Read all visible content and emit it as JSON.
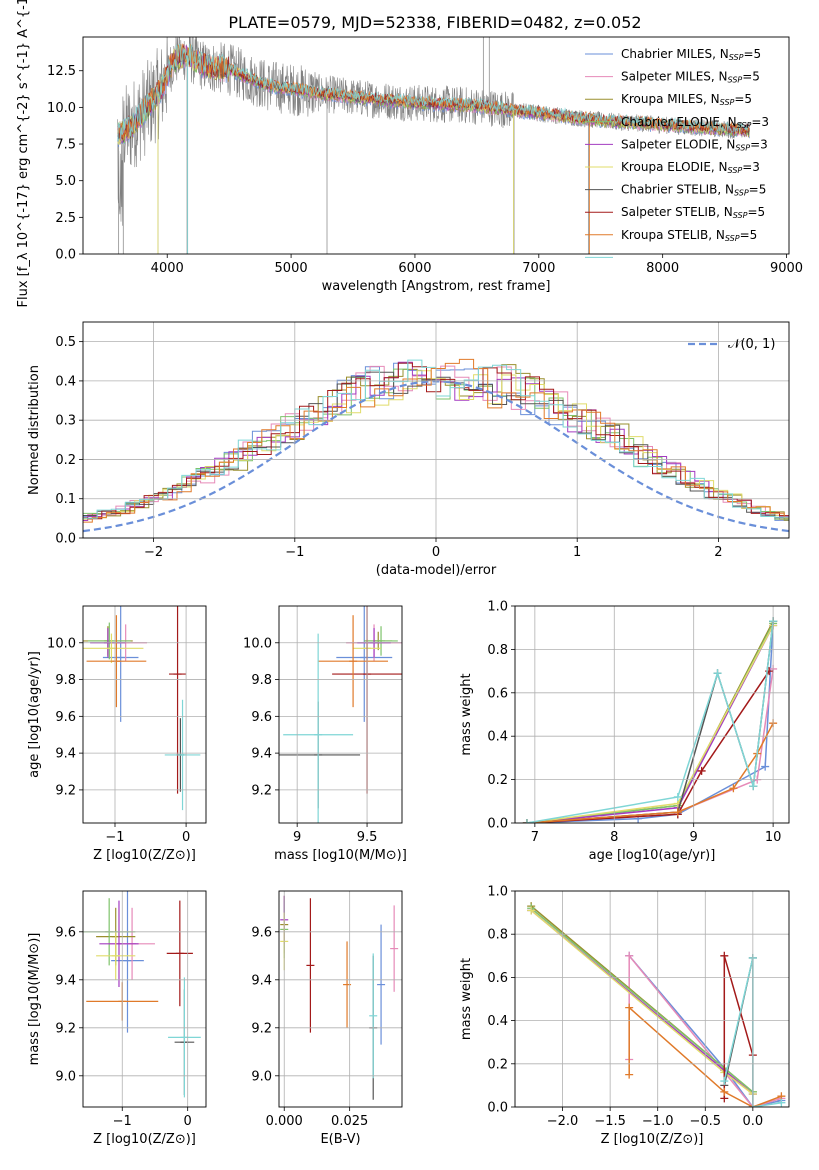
{
  "figure_title": "PLATE=0579, MJD=52338, FIBERID=0482, z=0.052",
  "colors": {
    "c0": "#6a8fd9",
    "c1": "#e68ab8",
    "c2": "#9a8f2e",
    "c3": "#7ec36b",
    "c4": "#a33bc1",
    "c5": "#e0dc6a",
    "c6": "#555555",
    "c7": "#a31a1a",
    "c8": "#e07a2a",
    "c9": "#7fd6d6",
    "data": "#808080"
  },
  "chart_data": [
    {
      "id": "spectrum",
      "type": "line",
      "xlabel": "wavelength [Angstrom, rest frame]",
      "ylabel": "Flux [f_λ 10^{-17} erg cm^{-2} s^{-1} A^{-1}]",
      "xlim": [
        3320,
        9020
      ],
      "ylim": [
        0,
        14.8
      ],
      "xticks": [
        4000,
        5000,
        6000,
        7000,
        8000,
        9000
      ],
      "yticks": [
        0.0,
        2.5,
        5.0,
        7.5,
        10.0,
        12.5
      ],
      "grid": false,
      "legend_position": "top-right",
      "legend": [
        {
          "base": "Chabrier MILES, N",
          "sub": "SSP",
          "tail": "=5",
          "color": "c0"
        },
        {
          "base": "Salpeter MILES, N",
          "sub": "SSP",
          "tail": "=5",
          "color": "c1"
        },
        {
          "base": "Kroupa MILES, N",
          "sub": "SSP",
          "tail": "=5",
          "color": "c2"
        },
        {
          "base": "Chabrier ELODIE, N",
          "sub": "SSP",
          "tail": "=3",
          "color": "c3"
        },
        {
          "base": "Salpeter ELODIE, N",
          "sub": "SSP",
          "tail": "=3",
          "color": "c4"
        },
        {
          "base": "Kroupa ELODIE, N",
          "sub": "SSP",
          "tail": "=3",
          "color": "c5"
        },
        {
          "base": "Chabrier STELIB, N",
          "sub": "SSP",
          "tail": "=5",
          "color": "c6"
        },
        {
          "base": "Salpeter STELIB, N",
          "sub": "SSP",
          "tail": "=5",
          "color": "c7"
        },
        {
          "base": "Kroupa STELIB, N",
          "sub": "SSP",
          "tail": "=5",
          "color": "c8"
        }
      ],
      "legend_extra_color": "c9",
      "model_trend": [
        [
          3600,
          8.2
        ],
        [
          3700,
          8.6
        ],
        [
          3800,
          9.6
        ],
        [
          3950,
          11.2
        ],
        [
          4050,
          13.2
        ],
        [
          4150,
          13.6
        ],
        [
          4300,
          12.8
        ],
        [
          4500,
          12.6
        ],
        [
          4800,
          11.5
        ],
        [
          5200,
          11.0
        ],
        [
          5600,
          10.6
        ],
        [
          6000,
          10.3
        ],
        [
          6500,
          10.1
        ],
        [
          7000,
          9.6
        ],
        [
          7500,
          9.1
        ],
        [
          8000,
          8.8
        ],
        [
          8500,
          8.5
        ],
        [
          8700,
          8.4
        ]
      ]
    },
    {
      "id": "residuals",
      "type": "step",
      "xlabel": "(data-model)/error",
      "ylabel": "Normed distribution",
      "xlim": [
        -2.5,
        2.5
      ],
      "ylim": [
        0,
        0.55
      ],
      "xticks": [
        -2,
        -1,
        0,
        1,
        2
      ],
      "yticks": [
        0.0,
        0.1,
        0.2,
        0.3,
        0.4,
        0.5
      ],
      "grid": true,
      "legend_position": "top-right",
      "legend": [
        {
          "label": "𝒩(0, 1)",
          "color": "c0",
          "style": "dashed"
        }
      ],
      "bin_width": 0.1,
      "hist_base": [
        0.02,
        0.022,
        0.025,
        0.03,
        0.035,
        0.04,
        0.047,
        0.055,
        0.063,
        0.072,
        0.085,
        0.098,
        0.112,
        0.128,
        0.145,
        0.162,
        0.182,
        0.2,
        0.22,
        0.245,
        0.26,
        0.28,
        0.3,
        0.32,
        0.345,
        0.36,
        0.375,
        0.39,
        0.4,
        0.41,
        0.4,
        0.395,
        0.39,
        0.4,
        0.395,
        0.385,
        0.39,
        0.38,
        0.365,
        0.35,
        0.335,
        0.31,
        0.29,
        0.27,
        0.255,
        0.23,
        0.21,
        0.19,
        0.17,
        0.15,
        0.135,
        0.115,
        0.1,
        0.085,
        0.072,
        0.062,
        0.052,
        0.044,
        0.037,
        0.032,
        0.028,
        0.025,
        0.022,
        0.02,
        0.018
      ]
    },
    {
      "id": "age-vs-Z",
      "type": "errorbar",
      "xlabel": "Z [log10(Z/Z⊙)]",
      "ylabel": "age  [log10(age/yr)]",
      "xlim": [
        -1.45,
        0.28
      ],
      "ylim": [
        9.02,
        10.2
      ],
      "xticks": [
        -1,
        0
      ],
      "yticks": [
        9.2,
        9.4,
        9.6,
        9.8,
        10.0
      ],
      "grid": true,
      "points": [
        {
          "c": "c0",
          "x": -0.92,
          "xe": 0.25,
          "y": 9.92,
          "ye": 0.35
        },
        {
          "c": "c1",
          "x": -0.85,
          "xe": 0.3,
          "y": 10.0,
          "ye": 0.1
        },
        {
          "c": "c2",
          "x": -1.1,
          "xe": 0.35,
          "y": 10.01,
          "ye": 0.08
        },
        {
          "c": "c3",
          "x": -1.08,
          "xe": 0.3,
          "y": 10.01,
          "ye": 0.1
        },
        {
          "c": "c4",
          "x": -1.1,
          "xe": 0.25,
          "y": 10.0,
          "ye": 0.08
        },
        {
          "c": "c5",
          "x": -1.05,
          "xe": 0.45,
          "y": 9.97,
          "ye": 0.08
        },
        {
          "c": "c6",
          "x": -0.08,
          "xe": 0.05,
          "y": 9.39,
          "ye": 0.2
        },
        {
          "c": "c7",
          "x": -0.12,
          "xe": 0.12,
          "y": 9.83,
          "ye": 0.65
        },
        {
          "c": "c8",
          "x": -0.98,
          "xe": 0.42,
          "y": 9.9,
          "ye": 0.25
        },
        {
          "c": "c9",
          "x": -0.05,
          "xe": 0.25,
          "y": 9.39,
          "ye": 0.3
        }
      ]
    },
    {
      "id": "age-vs-mass",
      "type": "errorbar",
      "xlabel": "mass [log10(M/M⊙)]",
      "ylabel": "",
      "xlim": [
        8.87,
        9.75
      ],
      "ylim": [
        9.02,
        10.2
      ],
      "xticks": [
        9.0,
        9.5
      ],
      "yticks": [
        9.2,
        9.4,
        9.6,
        9.8,
        10.0
      ],
      "grid": true,
      "points": [
        {
          "c": "c0",
          "x": 9.48,
          "xe": 0.2,
          "y": 9.92,
          "ye": 0.35
        },
        {
          "c": "c1",
          "x": 9.55,
          "xe": 0.2,
          "y": 10.0,
          "ye": 0.1
        },
        {
          "c": "c2",
          "x": 9.58,
          "xe": 0.1,
          "y": 10.01,
          "ye": 0.05
        },
        {
          "c": "c3",
          "x": 9.6,
          "xe": 0.12,
          "y": 10.01,
          "ye": 0.08
        },
        {
          "c": "c4",
          "x": 9.55,
          "xe": 0.12,
          "y": 10.0,
          "ye": 0.08
        },
        {
          "c": "c5",
          "x": 9.5,
          "xe": 0.1,
          "y": 9.97,
          "ye": 0.05
        },
        {
          "c": "c6",
          "x": 9.15,
          "xe": 0.3,
          "y": 9.39,
          "ye": 0.29
        },
        {
          "c": "c7",
          "x": 9.5,
          "xe": 0.25,
          "y": 9.83,
          "ye": 0.65
        },
        {
          "c": "c8",
          "x": 9.4,
          "xe": 0.25,
          "y": 9.9,
          "ye": 0.25
        },
        {
          "c": "c9",
          "x": 9.15,
          "xe": 0.25,
          "y": 9.5,
          "ye": 0.55
        }
      ]
    },
    {
      "id": "mass-weight-vs-age",
      "type": "line",
      "xlabel": "age  [log10(age/yr)]",
      "ylabel": "mass weight",
      "xlim": [
        6.75,
        10.2
      ],
      "ylim": [
        0,
        1
      ],
      "xticks": [
        7,
        8,
        9,
        10
      ],
      "yticks": [
        0.0,
        0.2,
        0.4,
        0.6,
        0.8,
        1.0
      ],
      "grid": true,
      "series": [
        {
          "c": "c0",
          "x": [
            6.9,
            8.3,
            8.8,
            9.9,
            10.0
          ],
          "y": [
            0.0,
            0.02,
            0.04,
            0.26,
            0.93
          ]
        },
        {
          "c": "c1",
          "x": [
            6.9,
            8.8,
            9.8,
            10.0
          ],
          "y": [
            0.0,
            0.05,
            0.2,
            0.71
          ]
        },
        {
          "c": "c2",
          "x": [
            6.9,
            8.8,
            10.0
          ],
          "y": [
            0.0,
            0.08,
            0.93
          ]
        },
        {
          "c": "c3",
          "x": [
            6.9,
            8.8,
            10.0
          ],
          "y": [
            0.0,
            0.08,
            0.92
          ]
        },
        {
          "c": "c4",
          "x": [
            6.9,
            8.8,
            10.0
          ],
          "y": [
            0.0,
            0.07,
            0.91
          ]
        },
        {
          "c": "c5",
          "x": [
            6.9,
            8.8,
            10.0
          ],
          "y": [
            0.0,
            0.09,
            0.91
          ]
        },
        {
          "c": "c6",
          "x": [
            6.9,
            8.8,
            9.3,
            9.75,
            10.0
          ],
          "y": [
            0.0,
            0.05,
            0.69,
            0.17,
            0.93
          ]
        },
        {
          "c": "c7",
          "x": [
            6.9,
            8.8,
            9.1,
            9.95
          ],
          "y": [
            0.0,
            0.04,
            0.24,
            0.7
          ]
        },
        {
          "c": "c8",
          "x": [
            6.9,
            8.8,
            9.5,
            9.8,
            10.0
          ],
          "y": [
            0.0,
            0.05,
            0.16,
            0.32,
            0.46
          ]
        },
        {
          "c": "c9",
          "x": [
            6.9,
            8.8,
            9.3,
            9.75,
            10.0
          ],
          "y": [
            0.0,
            0.12,
            0.69,
            0.17,
            0.93
          ]
        }
      ]
    },
    {
      "id": "mass-vs-Z",
      "type": "errorbar",
      "xlabel": "Z [log10(Z/Z⊙)]",
      "ylabel": "mass [log10(M/M⊙)]",
      "xlim": [
        -1.6,
        0.28
      ],
      "ylim": [
        8.87,
        9.77
      ],
      "xticks": [
        -1,
        0
      ],
      "yticks": [
        9.0,
        9.2,
        9.4,
        9.6
      ],
      "grid": true,
      "points": [
        {
          "c": "c0",
          "x": -0.92,
          "xe": 0.25,
          "y": 9.48,
          "ye": 0.3
        },
        {
          "c": "c1",
          "x": -0.85,
          "xe": 0.35,
          "y": 9.55,
          "ye": 0.15
        },
        {
          "c": "c2",
          "x": -1.1,
          "xe": 0.3,
          "y": 9.58,
          "ye": 0.12
        },
        {
          "c": "c3",
          "x": -1.2,
          "xe": 0.4,
          "y": 9.6,
          "ye": 0.14
        },
        {
          "c": "c4",
          "x": -1.05,
          "xe": 0.3,
          "y": 9.55,
          "ye": 0.18
        },
        {
          "c": "c5",
          "x": -1.1,
          "xe": 0.3,
          "y": 9.5,
          "ye": 0.1
        },
        {
          "c": "c6",
          "x": -0.05,
          "xe": 0.15,
          "y": 9.14,
          "ye": 0.22
        },
        {
          "c": "c7",
          "x": -0.12,
          "xe": 0.2,
          "y": 9.51,
          "ye": 0.22
        },
        {
          "c": "c8",
          "x": -1.0,
          "xe": 0.55,
          "y": 9.31,
          "ye": 0.08
        },
        {
          "c": "c9",
          "x": -0.05,
          "xe": 0.25,
          "y": 9.16,
          "ye": 0.25
        }
      ]
    },
    {
      "id": "mass-vs-EBV",
      "type": "errorbar",
      "xlabel": "E(B-V)",
      "ylabel": "",
      "xlim": [
        -0.002,
        0.045
      ],
      "ylim": [
        8.87,
        9.77
      ],
      "xticks": [
        0.0,
        0.025
      ],
      "xtick_labels": [
        "0.000",
        "0.025"
      ],
      "yticks": [
        9.0,
        9.2,
        9.4,
        9.6
      ],
      "grid": true,
      "points": [
        {
          "c": "c0",
          "x": 0.037,
          "xe": 0,
          "y": 9.38,
          "ye": 0.25
        },
        {
          "c": "c1",
          "x": 0.042,
          "xe": 0,
          "y": 9.53,
          "ye": 0.18
        },
        {
          "c": "c2",
          "x": 0.0,
          "xe": 0,
          "y": 9.63,
          "ye": 0.12
        },
        {
          "c": "c3",
          "x": 0.0,
          "xe": 0,
          "y": 9.61,
          "ye": 0.12
        },
        {
          "c": "c4",
          "x": 0.0,
          "xe": 0,
          "y": 9.65,
          "ye": 0.1
        },
        {
          "c": "c5",
          "x": 0.0,
          "xe": 0,
          "y": 9.56,
          "ye": 0.12
        },
        {
          "c": "c6",
          "x": 0.034,
          "xe": 0,
          "y": 9.2,
          "ye": 0.3
        },
        {
          "c": "c7",
          "x": 0.01,
          "xe": 0,
          "y": 9.46,
          "ye": 0.28
        },
        {
          "c": "c8",
          "x": 0.024,
          "xe": 0,
          "y": 9.38,
          "ye": 0.18
        },
        {
          "c": "c9",
          "x": 0.034,
          "xe": 0,
          "y": 9.25,
          "ye": 0.26
        }
      ]
    },
    {
      "id": "mass-weight-vs-Z",
      "type": "line",
      "xlabel": "Z [log10(Z/Z⊙)]",
      "ylabel": "mass weight",
      "xlim": [
        -2.5,
        0.38
      ],
      "ylim": [
        0,
        1
      ],
      "xticks": [
        -2.0,
        -1.5,
        -1.0,
        -0.5,
        0.0
      ],
      "xtick_labels": [
        "−2.0",
        "−1.5",
        "−1.0",
        "−0.5",
        "0.0"
      ],
      "yticks": [
        0.0,
        0.2,
        0.4,
        0.6,
        0.8,
        1.0
      ],
      "grid": true,
      "series": [
        {
          "c": "c0",
          "x": [
            -1.3,
            -0.3,
            0.0,
            0.3
          ],
          "y": [
            0.7,
            0.18,
            0.0,
            0.03
          ]
        },
        {
          "c": "c1",
          "x": [
            -1.3,
            -1.3,
            0.0,
            0.3
          ],
          "y": [
            0.22,
            0.7,
            0.0,
            0.04
          ]
        },
        {
          "c": "c2",
          "x": [
            -2.33,
            -0.3,
            0.0
          ],
          "y": [
            0.93,
            0.18,
            0.07
          ]
        },
        {
          "c": "c3",
          "x": [
            -2.33,
            -0.3,
            0.0
          ],
          "y": [
            0.92,
            0.18,
            0.07
          ]
        },
        {
          "c": "c4",
          "x": [
            -2.33,
            -0.3,
            0.0
          ],
          "y": [
            0.91,
            0.17,
            0.06
          ]
        },
        {
          "c": "c5",
          "x": [
            -2.33,
            -0.3,
            0.0
          ],
          "y": [
            0.91,
            0.16,
            0.06
          ]
        },
        {
          "c": "c6",
          "x": [
            -0.3,
            0.0,
            0.0
          ],
          "y": [
            0.1,
            0.69,
            0.0
          ]
        },
        {
          "c": "c7",
          "x": [
            -0.3,
            -0.3,
            0.0,
            0.0
          ],
          "y": [
            0.04,
            0.7,
            0.24,
            0.0
          ]
        },
        {
          "c": "c8",
          "x": [
            -1.3,
            -1.3,
            -0.3,
            0.0,
            0.3
          ],
          "y": [
            0.15,
            0.46,
            0.07,
            0.0,
            0.05
          ]
        },
        {
          "c": "c9",
          "x": [
            -0.3,
            0.0,
            0.0,
            0.3
          ],
          "y": [
            0.12,
            0.69,
            0.0,
            0.02
          ]
        }
      ]
    }
  ]
}
